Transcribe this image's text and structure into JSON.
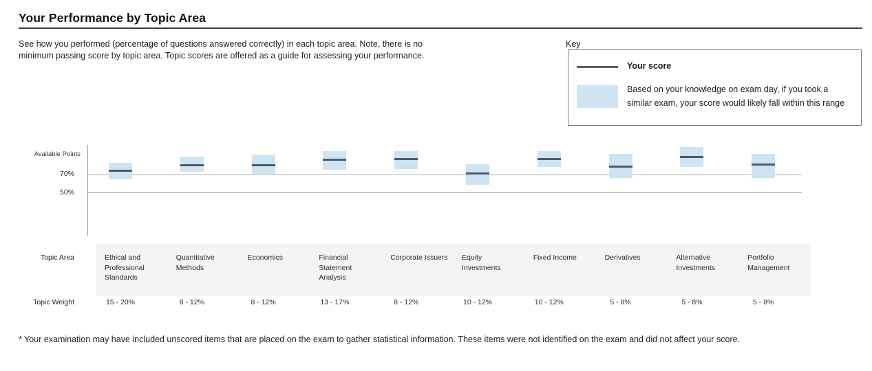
{
  "page": {
    "title": "Your Performance by Topic Area",
    "intro": "See how you performed (percentage of questions answered correctly) in each topic area. Note, there is no\nminimum passing score by topic area. Topic scores are offered as a guide for assessing your performance.",
    "footnote": "* Your examination may have included unscored items that are placed on the exam to gather statistical information. These items were not identified on the exam and did not affect your score."
  },
  "key": {
    "label": "Key",
    "score_label": "Your score",
    "range_label": "Based on your knowledge on exam day, if you took a\nsimilar exam, your score would likely fall within this range"
  },
  "axis": {
    "available_points_label": "Available Points",
    "tick_70": "70%",
    "tick_50": "50%"
  },
  "table": {
    "topic_area_label": "Topic Area",
    "topic_weight_label": "Topic Weight"
  },
  "colors": {
    "range_fill": "#cfe4f2",
    "score_line": "#4d5964",
    "gridline": "#b3b3b3",
    "axis_line": "#9b9b9b",
    "band_bg": "#f4f4f4",
    "key_border": "#7d7d7d"
  },
  "chart_data": {
    "type": "bar",
    "variant": "floating-range-boxes-with-score-line",
    "title": "Your Performance by Topic Area",
    "ylabel": "Available Points",
    "yticks": [
      "70%",
      "50%"
    ],
    "gridlines_pct": [
      70,
      50
    ],
    "ylim": [
      40,
      100
    ],
    "legend": [
      "Your score",
      "Likely score range"
    ],
    "legend_position": "top-right",
    "topics": [
      {
        "name": "Ethical and\nProfessional\nStandards",
        "weight": "15 - 20%",
        "score": 74,
        "range_low": 65,
        "range_high": 83
      },
      {
        "name": "Quantitative\nMethods",
        "weight": "8 - 12%",
        "score": 80,
        "range_low": 73,
        "range_high": 90
      },
      {
        "name": "Economics",
        "weight": "8 - 12%",
        "score": 80,
        "range_low": 71,
        "range_high": 92
      },
      {
        "name": "Financial\nStatement\nAnalysis",
        "weight": "13 - 17%",
        "score": 86,
        "range_low": 75,
        "range_high": 96
      },
      {
        "name": "Corporate Issuers",
        "weight": "8 - 12%",
        "score": 87,
        "range_low": 76,
        "range_high": 96
      },
      {
        "name": "Equity\nInvestments",
        "weight": "10 - 12%",
        "score": 71,
        "range_low": 59,
        "range_high": 81
      },
      {
        "name": "Fixed Income",
        "weight": "10 - 12%",
        "score": 87,
        "range_low": 78,
        "range_high": 96
      },
      {
        "name": "Derivatives",
        "weight": "5 - 8%",
        "score": 79,
        "range_low": 66,
        "range_high": 93
      },
      {
        "name": "Alternative\nInvestments",
        "weight": "5 - 8%",
        "score": 89,
        "range_low": 78,
        "range_high": 100
      },
      {
        "name": "Portfolio\nManagement",
        "weight": "5 - 8%",
        "score": 81,
        "range_low": 66,
        "range_high": 93
      }
    ]
  }
}
